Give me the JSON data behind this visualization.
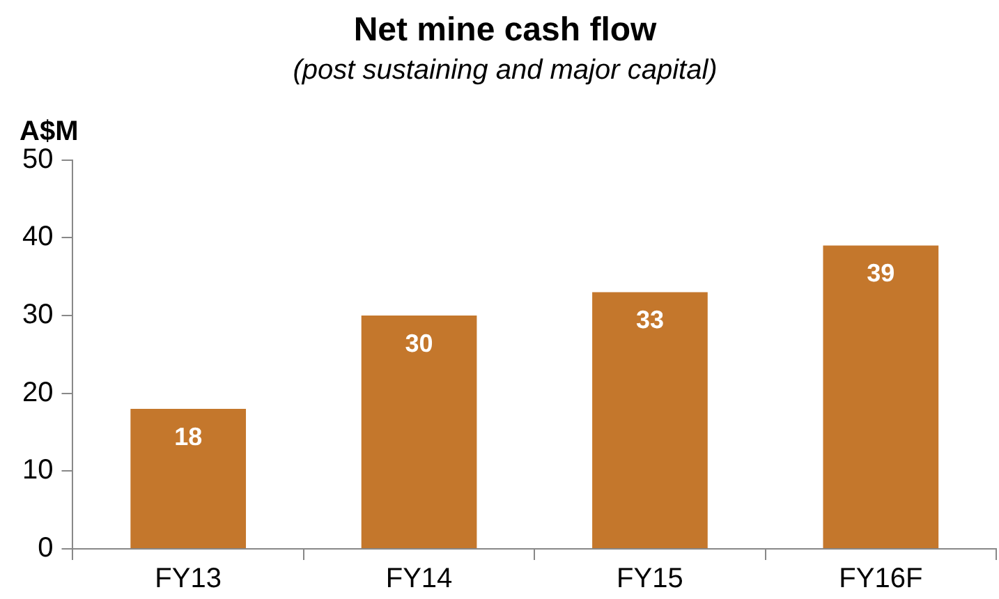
{
  "chart_data": {
    "type": "bar",
    "title": "Net mine cash flow",
    "subtitle": "(post sustaining and major capital)",
    "ylabel": "A$M",
    "categories": [
      "FY13",
      "FY14",
      "FY15",
      "FY16F"
    ],
    "values": [
      18,
      30,
      33,
      39
    ],
    "color": "#c4772c",
    "ylim": [
      0,
      50
    ],
    "yticks": [
      0,
      10,
      20,
      30,
      40,
      50
    ],
    "grid": false,
    "legend": false,
    "data_labels": true
  }
}
